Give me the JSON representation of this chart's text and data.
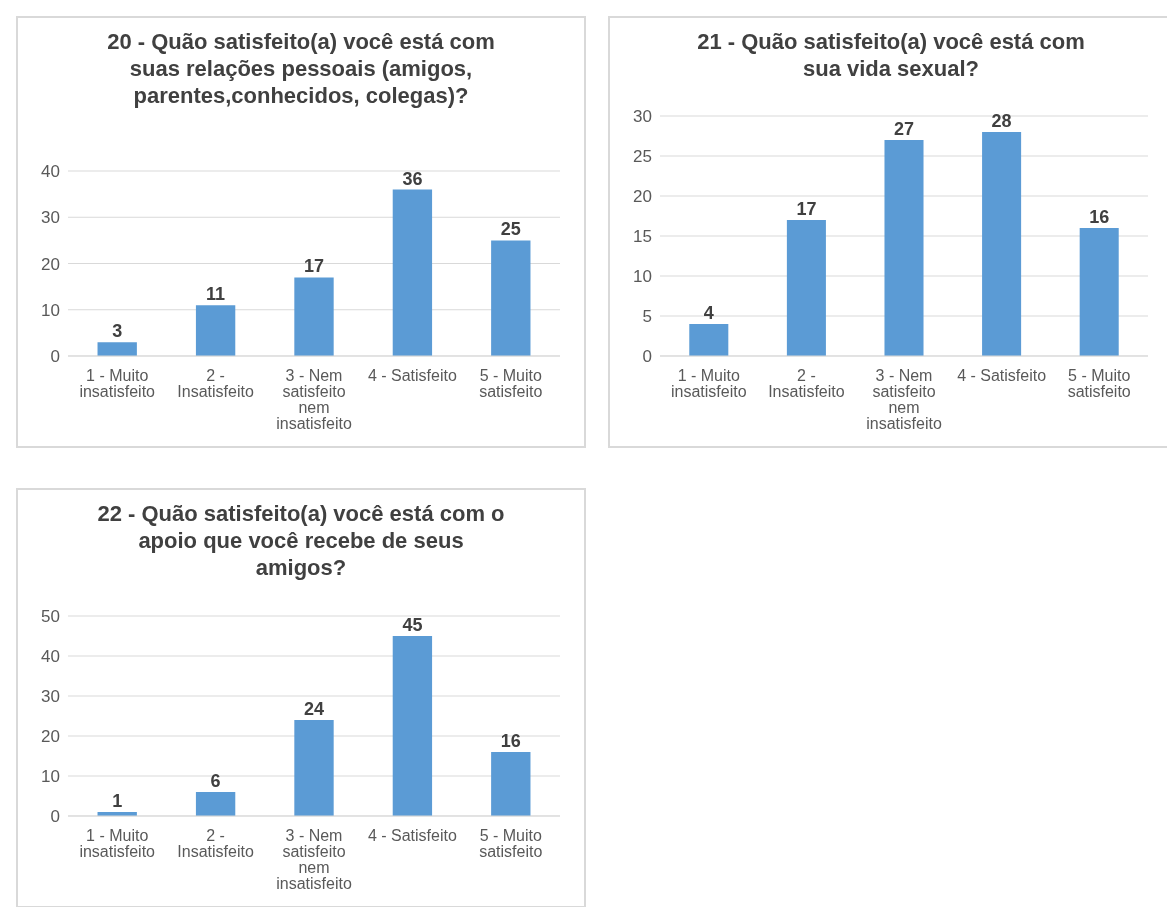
{
  "chart_data": [
    {
      "type": "bar",
      "title": "20 - Quão satisfeito(a) você está com suas relações pessoais (amigos, parentes,conhecidos, colegas)?",
      "categories": [
        "1 - Muito insatisfeito",
        "2 - Insatisfeito",
        "3 - Nem satisfeito nem insatisfeito",
        "4 - Satisfeito",
        "5 - Muito satisfeito"
      ],
      "values": [
        3,
        11,
        17,
        36,
        25
      ],
      "color": "#5b9bd5",
      "ylim": [
        0,
        40
      ],
      "yticks": [
        0,
        10,
        20,
        30,
        40
      ],
      "grid": "y",
      "data_labels": true
    },
    {
      "type": "bar",
      "title": "21 - Quão satisfeito(a) você está com sua vida sexual?",
      "categories": [
        "1 - Muito insatisfeito",
        "2 - Insatisfeito",
        "3 - Nem satisfeito nem insatisfeito",
        "4 - Satisfeito",
        "5 - Muito satisfeito"
      ],
      "values": [
        4,
        17,
        27,
        28,
        16
      ],
      "color": "#5b9bd5",
      "ylim": [
        0,
        30
      ],
      "yticks": [
        0,
        5,
        10,
        15,
        20,
        25,
        30
      ],
      "grid": "y",
      "data_labels": true
    },
    {
      "type": "bar",
      "title": "22 - Quão satisfeito(a) você está com o apoio que você recebe de seus amigos?",
      "categories": [
        "1 - Muito insatisfeito",
        "2 - Insatisfeito",
        "3 - Nem satisfeito nem insatisfeito",
        "4 - Satisfeito",
        "5 - Muito satisfeito"
      ],
      "values": [
        1,
        6,
        24,
        45,
        16
      ],
      "color": "#5b9bd5",
      "ylim": [
        0,
        50
      ],
      "yticks": [
        0,
        10,
        20,
        30,
        40,
        50
      ],
      "grid": "y",
      "data_labels": true
    }
  ]
}
